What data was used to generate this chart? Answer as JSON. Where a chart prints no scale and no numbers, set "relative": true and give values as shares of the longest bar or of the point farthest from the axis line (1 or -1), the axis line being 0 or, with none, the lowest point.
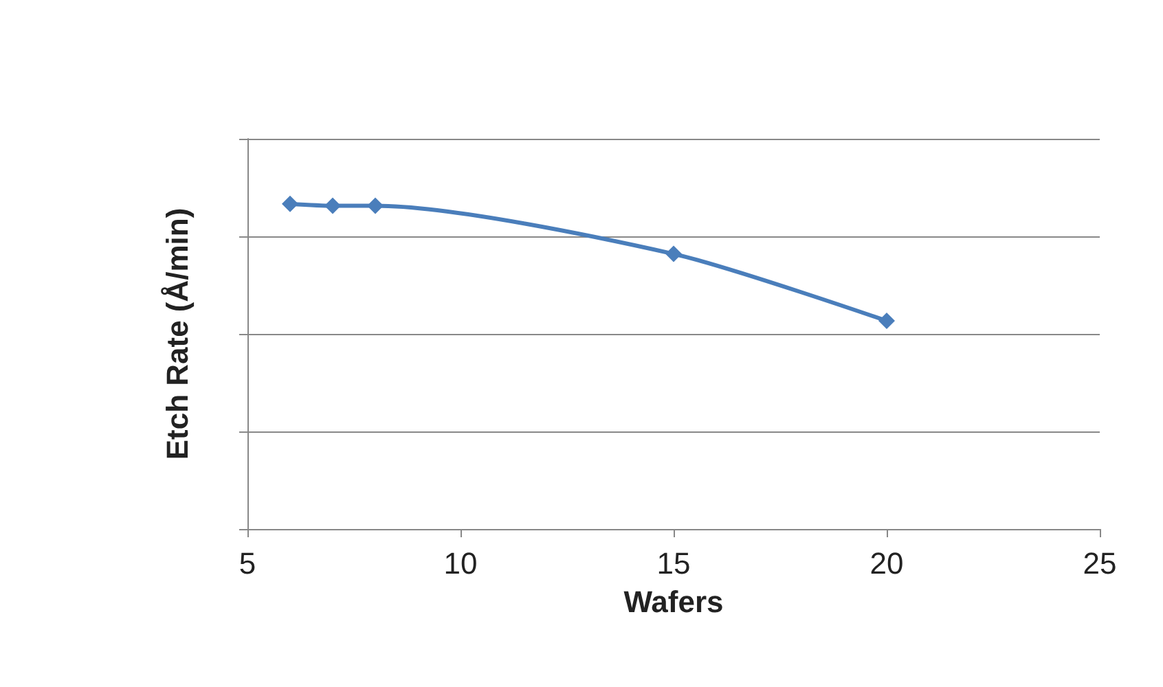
{
  "chart_data": {
    "type": "line",
    "xlabel": "Wafers",
    "ylabel": "Etch Rate (Å/min)",
    "relative": true,
    "x": [
      6,
      7,
      8,
      15,
      20
    ],
    "series": [
      {
        "color": "#4a7ebb",
        "values": [
          1,
          0.994,
          0.994,
          0.846,
          0.64
        ]
      }
    ],
    "xlim": [
      5,
      25
    ],
    "xticks": [
      5,
      10,
      15,
      20,
      25
    ],
    "grid": "y",
    "marker": "diamond"
  }
}
